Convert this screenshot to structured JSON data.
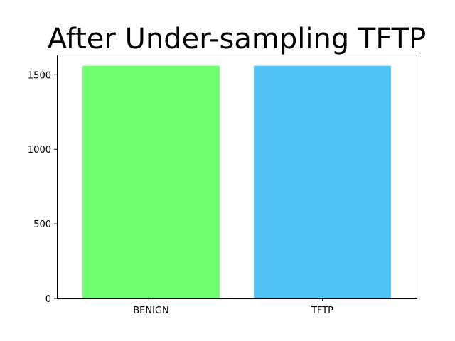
{
  "chart_data": {
    "type": "bar",
    "title": "After Under-sampling TFTP",
    "xlabel": "",
    "ylabel": "",
    "categories": [
      "BENIGN",
      "TFTP"
    ],
    "values": [
      1560,
      1560
    ],
    "colors": [
      "#6fff6f",
      "#4fc3f7"
    ],
    "ylim": [
      0,
      1635
    ],
    "yticks": [
      0,
      500,
      1000,
      1500
    ],
    "grid": false
  }
}
